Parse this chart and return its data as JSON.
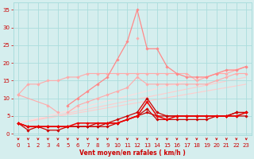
{
  "x": [
    0,
    1,
    2,
    3,
    4,
    5,
    6,
    7,
    8,
    9,
    10,
    11,
    12,
    13,
    14,
    15,
    16,
    17,
    18,
    19,
    20,
    21,
    22,
    23
  ],
  "series": [
    {
      "y": [
        11,
        14,
        14,
        15,
        15,
        16,
        16,
        17,
        17,
        17,
        17,
        17,
        17,
        17,
        17,
        17,
        17,
        17,
        15,
        16,
        17,
        17,
        18,
        19
      ],
      "color": "#ffaaaa",
      "lw": 0.8,
      "marker": "D",
      "ms": 1.8,
      "zorder": 2
    },
    {
      "y": [
        11,
        null,
        null,
        8,
        6,
        null,
        null,
        null,
        null,
        null,
        null,
        null,
        null,
        null,
        null,
        null,
        null,
        null,
        null,
        null,
        null,
        null,
        null,
        null
      ],
      "color": "#ffaaaa",
      "lw": 0.8,
      "marker": "D",
      "ms": 1.8,
      "zorder": 2
    },
    {
      "y": [
        null,
        null,
        null,
        null,
        null,
        6,
        8,
        9,
        10,
        11,
        12,
        13,
        16,
        14,
        14,
        14,
        14,
        14,
        14,
        14,
        15,
        16,
        17,
        17
      ],
      "color": "#ffaaaa",
      "lw": 0.8,
      "marker": "D",
      "ms": 1.8,
      "zorder": 2
    },
    {
      "y": [
        null,
        null,
        null,
        null,
        null,
        null,
        null,
        null,
        null,
        null,
        null,
        null,
        27,
        null,
        null,
        null,
        null,
        null,
        null,
        null,
        null,
        null,
        null,
        null
      ],
      "color": "#ffaaaa",
      "lw": 0.8,
      "marker": "D",
      "ms": 1.8,
      "zorder": 2
    },
    {
      "y": [
        null,
        null,
        null,
        null,
        null,
        8,
        10,
        12,
        14,
        16,
        21,
        26,
        35,
        24,
        24,
        19,
        17,
        16,
        16,
        16,
        17,
        18,
        18,
        19
      ],
      "color": "#ff8888",
      "lw": 0.9,
      "marker": "D",
      "ms": 1.8,
      "zorder": 3
    },
    {
      "y": [
        3,
        2,
        2,
        2,
        2,
        2,
        2,
        2,
        3,
        3,
        4,
        5,
        6,
        10,
        6,
        5,
        5,
        5,
        5,
        5,
        5,
        5,
        6,
        6
      ],
      "color": "#cc0000",
      "lw": 0.9,
      "marker": "D",
      "ms": 1.8,
      "zorder": 4
    },
    {
      "y": [
        3,
        1,
        2,
        1,
        1,
        2,
        2,
        2,
        2,
        3,
        3,
        4,
        5,
        7,
        4,
        4,
        4,
        4,
        4,
        4,
        5,
        5,
        5,
        5
      ],
      "color": "#cc0000",
      "lw": 0.9,
      "marker": "D",
      "ms": 1.8,
      "zorder": 4
    },
    {
      "y": [
        3,
        2,
        2,
        2,
        2,
        2,
        2,
        2,
        2,
        2,
        3,
        4,
        5,
        6,
        5,
        5,
        5,
        5,
        5,
        5,
        5,
        5,
        6,
        6
      ],
      "color": "#cc0000",
      "lw": 0.9,
      "marker": "D",
      "ms": 1.8,
      "zorder": 4
    },
    {
      "y": [
        3,
        2,
        2,
        2,
        2,
        2,
        3,
        3,
        3,
        3,
        3,
        4,
        5,
        9,
        5,
        4,
        5,
        5,
        5,
        5,
        5,
        5,
        5,
        6
      ],
      "color": "#ee0000",
      "lw": 1.1,
      "marker": "D",
      "ms": 1.8,
      "zorder": 5
    }
  ],
  "trend_lines": [
    {
      "x0": 0,
      "y0": 3,
      "x1": 23,
      "y1": 14,
      "color": "#ffcccc",
      "lw": 0.8
    },
    {
      "x0": 0,
      "y0": 3,
      "x1": 23,
      "y1": 16,
      "color": "#ffcccc",
      "lw": 0.8
    },
    {
      "x0": 0,
      "y0": 3,
      "x1": 23,
      "y1": 19,
      "color": "#ffdddd",
      "lw": 0.8
    }
  ],
  "xlabel": "Vent moyen/en rafales ( km/h )",
  "ylim": [
    -0.5,
    37
  ],
  "xlim": [
    -0.5,
    23.5
  ],
  "yticks": [
    0,
    5,
    10,
    15,
    20,
    25,
    30,
    35
  ],
  "xticks": [
    0,
    1,
    2,
    3,
    4,
    5,
    6,
    7,
    8,
    9,
    10,
    11,
    12,
    13,
    14,
    15,
    16,
    17,
    18,
    19,
    20,
    21,
    22,
    23
  ],
  "bg_color": "#d5eeee",
  "grid_color": "#aadddd",
  "text_color": "#cc0000",
  "arrow_color": "#cc0000",
  "tick_labelsize": 5.0,
  "xlabel_fontsize": 5.5
}
